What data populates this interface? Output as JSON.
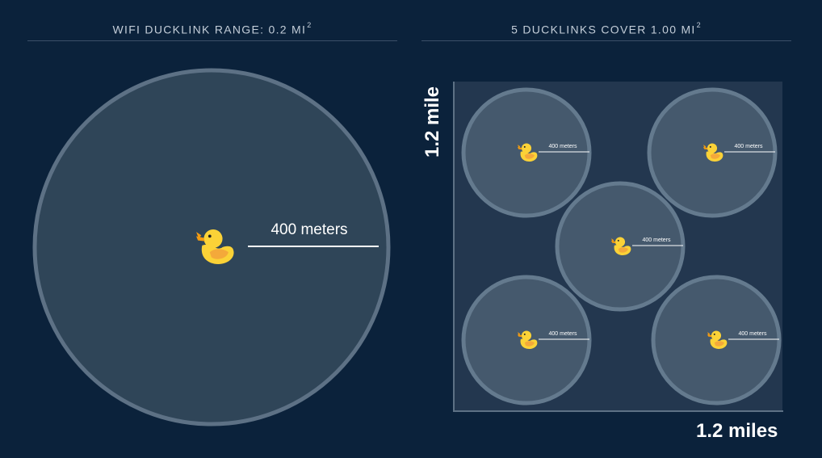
{
  "left_panel": {
    "title": "WIFI DUCKLINK RANGE: 0.2 MI",
    "title_superscript": "2",
    "radius_label": "400 meters",
    "icon": "duck-icon"
  },
  "right_panel": {
    "title": "5 DUCKLINKS COVER 1.00 MI",
    "title_superscript": "2",
    "x_dimension_label": "1.2 miles",
    "y_dimension_label": "1.2 mile",
    "ducklinks": [
      {
        "radius_label": "400 meters"
      },
      {
        "radius_label": "400 meters"
      },
      {
        "radius_label": "400 meters"
      },
      {
        "radius_label": "400 meters"
      },
      {
        "radius_label": "400 meters"
      }
    ]
  },
  "colors": {
    "background": "#0b223b",
    "square_fill": "#23374f",
    "circle_fill": "#2f4558",
    "circle_stroke": "#5d7185",
    "duck_body": "#fbd237",
    "duck_wing": "#f4a93a",
    "duck_beak": "#f39c12"
  }
}
